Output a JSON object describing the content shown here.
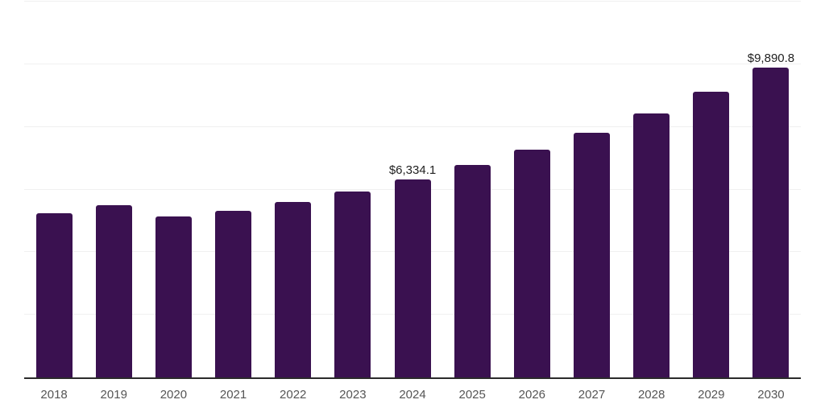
{
  "chart_data": {
    "type": "bar",
    "title": "",
    "xlabel": "",
    "ylabel": "",
    "categories": [
      "2018",
      "2019",
      "2020",
      "2021",
      "2022",
      "2023",
      "2024",
      "2025",
      "2026",
      "2027",
      "2028",
      "2029",
      "2030"
    ],
    "values": [
      5230,
      5500,
      5150,
      5320,
      5600,
      5930,
      6334.1,
      6790,
      7280,
      7800,
      8430,
      9120,
      9890.8
    ],
    "bar_labels": [
      "",
      "",
      "",
      "",
      "",
      "",
      "$6,334.1",
      "",
      "",
      "",
      "",
      "",
      "$9,890.8"
    ],
    "ylim": [
      0,
      12000
    ],
    "gridline_step": 2000,
    "grid": true,
    "legend_position": "none",
    "colors": {
      "bar": "#3A1150",
      "gridline": "#F0F0F0",
      "axis": "#2B2B2B",
      "tick_label": "#555555",
      "data_label": "#1F1F1F",
      "background": "#FFFFFF"
    }
  }
}
